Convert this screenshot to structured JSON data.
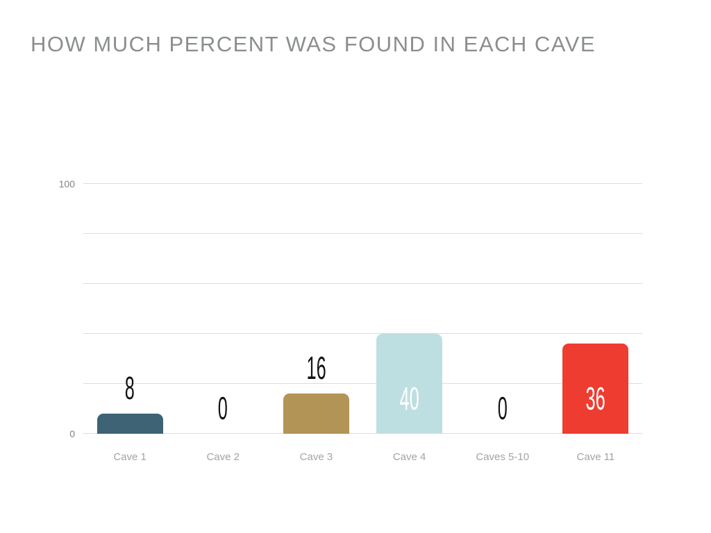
{
  "title": "HOW MUCH PERCENT WAS FOUND IN EACH CAVE",
  "colors": {
    "title": "#8b8e90",
    "grid": "#dcdcdc",
    "tick_label": "#808284",
    "category_label": "#a0a3a5",
    "value_outside": "#141414",
    "value_inside": "#ffffff"
  },
  "chart_data": {
    "type": "bar",
    "title": "HOW MUCH PERCENT WAS FOUND IN EACH CAVE",
    "categories": [
      "Cave 1",
      "Cave 2",
      "Cave 3",
      "Cave 4",
      "Caves 5-10",
      "Cave 11"
    ],
    "values": [
      8,
      0,
      16,
      40,
      0,
      36
    ],
    "bar_colors": [
      "#3d6375",
      null,
      "#b29456",
      "#bedfe2",
      null,
      "#ee3c31"
    ],
    "value_label_inside": [
      false,
      false,
      false,
      true,
      false,
      true
    ],
    "xlabel": "",
    "ylabel": "",
    "ylim": [
      0,
      100
    ],
    "yticks": [
      0,
      100
    ],
    "gridline_values": [
      0,
      20,
      40,
      60,
      80,
      100
    ],
    "grid": true,
    "legend": false,
    "background": "#ffffff"
  }
}
